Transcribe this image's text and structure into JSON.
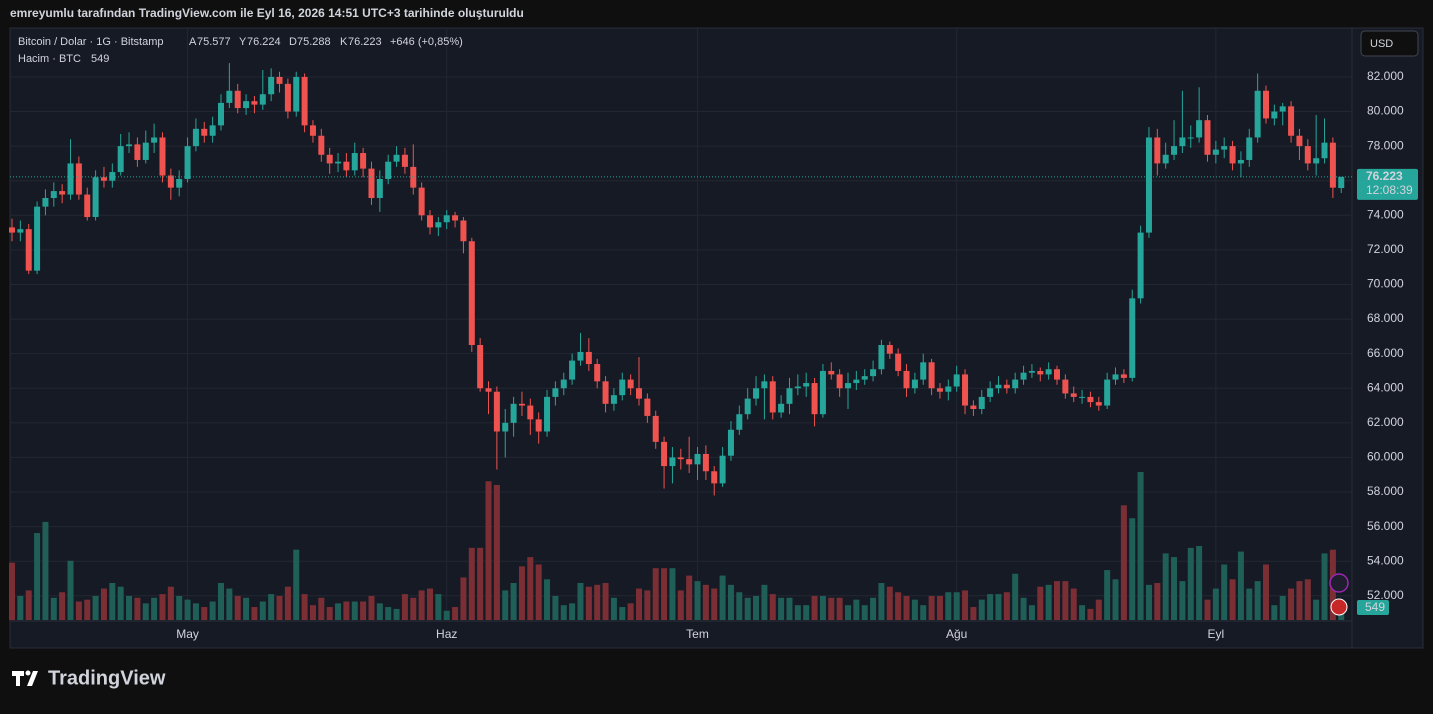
{
  "page": {
    "top_note": "emreyumlu tarafından TradingView.com ile Eyl 16, 2026 14:51 UTC+3 tarihinde oluşturuldu",
    "currency": "USD",
    "brand": "TradingView"
  },
  "header": {
    "symbol": "Bitcoin / Dolar · 1G · Bitstamp",
    "open_key": "A",
    "open": "75.577",
    "high_key": "Y",
    "high": "76.224",
    "low_key": "D",
    "low": "75.288",
    "close_key": "K",
    "close": "76.223",
    "change": "+646 (+0,85%)",
    "volume_name": "Hacim · BTC"
  },
  "chart_data": {
    "type": "candlestick",
    "up_color": "#26a69a",
    "down_color": "#ef5350",
    "volume_up_color": "#1f5f58",
    "volume_down_color": "#7b2f35",
    "grid": true,
    "last_price_label": "76.223",
    "countdown": "12:08:39",
    "ylim": [
      50600,
      84830
    ],
    "vlim": [
      0,
      32000
    ],
    "yticks": [
      {
        "value": 52000,
        "label": "52.000"
      },
      {
        "value": 54000,
        "label": "54.000"
      },
      {
        "value": 56000,
        "label": "56.000"
      },
      {
        "value": 58000,
        "label": "58.000"
      },
      {
        "value": 60000,
        "label": "60.000"
      },
      {
        "value": 62000,
        "label": "62.000"
      },
      {
        "value": 64000,
        "label": "64.000"
      },
      {
        "value": 66000,
        "label": "66.000"
      },
      {
        "value": 68000,
        "label": "68.000"
      },
      {
        "value": 70000,
        "label": "70.000"
      },
      {
        "value": 72000,
        "label": "72.000"
      },
      {
        "value": 74000,
        "label": "74.000"
      },
      {
        "value": 76000,
        "label": "76.000"
      },
      {
        "value": 78000,
        "label": "78.000"
      },
      {
        "value": 80000,
        "label": "80.000"
      },
      {
        "value": 82000,
        "label": "82.000"
      }
    ],
    "categories": [
      null,
      null,
      null,
      null,
      null,
      null,
      null,
      null,
      null,
      null,
      null,
      null,
      null,
      null,
      null,
      null,
      null,
      null,
      null,
      null,
      null,
      "May",
      null,
      null,
      null,
      null,
      null,
      null,
      null,
      null,
      null,
      null,
      null,
      null,
      null,
      null,
      null,
      null,
      null,
      null,
      null,
      null,
      null,
      null,
      null,
      null,
      null,
      null,
      null,
      null,
      null,
      null,
      "Haz",
      null,
      null,
      null,
      null,
      null,
      null,
      null,
      null,
      null,
      null,
      null,
      null,
      null,
      null,
      null,
      null,
      null,
      null,
      null,
      null,
      null,
      null,
      null,
      null,
      null,
      null,
      null,
      null,
      null,
      "Tem",
      null,
      null,
      null,
      null,
      null,
      null,
      null,
      null,
      null,
      null,
      null,
      null,
      null,
      null,
      null,
      null,
      null,
      null,
      null,
      null,
      null,
      null,
      null,
      null,
      null,
      null,
      null,
      null,
      null,
      null,
      "Ağu",
      null,
      null,
      null,
      null,
      null,
      null,
      null,
      null,
      null,
      null,
      null,
      null,
      null,
      null,
      null,
      null,
      null,
      null,
      null,
      null,
      null,
      null,
      null,
      null,
      null,
      null,
      null,
      null,
      null,
      null,
      "Eyl",
      null,
      null,
      null,
      null,
      null,
      null,
      null,
      null,
      null,
      null,
      null,
      null,
      null,
      null,
      null
    ],
    "ohlc": [
      [
        73300,
        73800,
        72500,
        73000
      ],
      [
        73000,
        73700,
        72500,
        73200
      ],
      [
        73200,
        73500,
        70600,
        70800
      ],
      [
        70800,
        74800,
        70600,
        74500
      ],
      [
        74500,
        75500,
        74000,
        75000
      ],
      [
        75000,
        75900,
        74500,
        75400
      ],
      [
        75400,
        75800,
        74700,
        75200
      ],
      [
        75200,
        78400,
        74900,
        77000
      ],
      [
        77000,
        77400,
        74900,
        75200
      ],
      [
        75200,
        75600,
        73700,
        73900
      ],
      [
        73900,
        76600,
        73700,
        76200
      ],
      [
        76200,
        76800,
        75600,
        76000
      ],
      [
        76000,
        77000,
        75600,
        76500
      ],
      [
        76500,
        78700,
        76300,
        78000
      ],
      [
        78000,
        78800,
        77600,
        78100
      ],
      [
        78100,
        78500,
        76800,
        77200
      ],
      [
        77200,
        78900,
        77000,
        78200
      ],
      [
        78200,
        79300,
        77600,
        78500
      ],
      [
        78500,
        78800,
        75900,
        76300
      ],
      [
        76300,
        76700,
        74900,
        75600
      ],
      [
        75600,
        76600,
        75100,
        76100
      ],
      [
        76100,
        78500,
        75900,
        78000
      ],
      [
        78000,
        79600,
        77700,
        79000
      ],
      [
        79000,
        79400,
        78200,
        78600
      ],
      [
        78600,
        79700,
        78200,
        79200
      ],
      [
        79200,
        81000,
        78900,
        80500
      ],
      [
        80500,
        82800,
        80200,
        81200
      ],
      [
        81200,
        81600,
        79900,
        80200
      ],
      [
        80200,
        81000,
        79800,
        80600
      ],
      [
        80600,
        80900,
        79900,
        80400
      ],
      [
        80400,
        82400,
        80100,
        81000
      ],
      [
        81000,
        82500,
        80600,
        82000
      ],
      [
        82000,
        82300,
        81100,
        81600
      ],
      [
        81600,
        81900,
        79600,
        80000
      ],
      [
        80000,
        82300,
        79700,
        82000
      ],
      [
        82000,
        82200,
        78800,
        79200
      ],
      [
        79200,
        79500,
        78200,
        78600
      ],
      [
        78600,
        79000,
        77100,
        77500
      ],
      [
        77500,
        77900,
        76400,
        77000
      ],
      [
        77000,
        77600,
        76500,
        77100
      ],
      [
        77100,
        77600,
        76200,
        76600
      ],
      [
        76600,
        78200,
        76300,
        77600
      ],
      [
        77600,
        77900,
        76200,
        76700
      ],
      [
        76700,
        77100,
        74600,
        75000
      ],
      [
        75000,
        76600,
        74200,
        76100
      ],
      [
        76100,
        77500,
        75800,
        77100
      ],
      [
        77100,
        78000,
        76800,
        77500
      ],
      [
        77500,
        77900,
        76400,
        76800
      ],
      [
        76800,
        78100,
        75200,
        75600
      ],
      [
        75600,
        75900,
        73700,
        74000
      ],
      [
        74000,
        74300,
        72900,
        73300
      ],
      [
        73300,
        73900,
        72800,
        73600
      ],
      [
        73600,
        74300,
        73200,
        74000
      ],
      [
        74000,
        74200,
        73300,
        73700
      ],
      [
        73700,
        73900,
        71800,
        72500
      ],
      [
        72500,
        72700,
        66100,
        66500
      ],
      [
        66500,
        66900,
        63800,
        64000
      ],
      [
        64000,
        64400,
        62500,
        63800
      ],
      [
        63800,
        64100,
        59300,
        61500
      ],
      [
        61500,
        62800,
        60000,
        62000
      ],
      [
        62000,
        63500,
        61200,
        63100
      ],
      [
        63100,
        63800,
        62400,
        63000
      ],
      [
        63000,
        63400,
        61300,
        62200
      ],
      [
        62200,
        62600,
        60800,
        61500
      ],
      [
        61500,
        63900,
        61200,
        63500
      ],
      [
        63500,
        64400,
        63000,
        64000
      ],
      [
        64000,
        64900,
        63600,
        64500
      ],
      [
        64500,
        66000,
        64200,
        65600
      ],
      [
        65600,
        67200,
        65300,
        66100
      ],
      [
        66100,
        66900,
        65000,
        65400
      ],
      [
        65400,
        65700,
        64000,
        64400
      ],
      [
        64400,
        64700,
        62600,
        63100
      ],
      [
        63100,
        64000,
        62700,
        63600
      ],
      [
        63600,
        64900,
        63300,
        64500
      ],
      [
        64500,
        64800,
        63600,
        64000
      ],
      [
        64000,
        65800,
        63000,
        63400
      ],
      [
        63400,
        63700,
        62000,
        62400
      ],
      [
        62400,
        62700,
        60500,
        60900
      ],
      [
        60900,
        61200,
        58200,
        59500
      ],
      [
        59500,
        60600,
        58500,
        60000
      ],
      [
        60000,
        60500,
        59300,
        59900
      ],
      [
        59900,
        61200,
        59100,
        59600
      ],
      [
        59600,
        60600,
        58700,
        60200
      ],
      [
        60200,
        60700,
        58700,
        59200
      ],
      [
        59200,
        59500,
        57800,
        58500
      ],
      [
        58500,
        60600,
        58300,
        60100
      ],
      [
        60100,
        62100,
        59800,
        61600
      ],
      [
        61600,
        63000,
        61300,
        62500
      ],
      [
        62500,
        64000,
        62200,
        63400
      ],
      [
        63400,
        64700,
        63000,
        64000
      ],
      [
        64000,
        64800,
        62200,
        64400
      ],
      [
        64400,
        64700,
        62200,
        62600
      ],
      [
        62600,
        63600,
        62300,
        63100
      ],
      [
        63100,
        64600,
        62500,
        64000
      ],
      [
        64000,
        64800,
        63600,
        64100
      ],
      [
        64100,
        64900,
        63500,
        64300
      ],
      [
        64300,
        64600,
        61800,
        62500
      ],
      [
        62500,
        65400,
        62300,
        65000
      ],
      [
        65000,
        65500,
        64500,
        64800
      ],
      [
        64800,
        65100,
        63500,
        64000
      ],
      [
        64000,
        64900,
        62800,
        64300
      ],
      [
        64300,
        65000,
        63900,
        64500
      ],
      [
        64500,
        65100,
        64200,
        64700
      ],
      [
        64700,
        65600,
        64400,
        65100
      ],
      [
        65100,
        66800,
        64800,
        66500
      ],
      [
        66500,
        66700,
        65700,
        66000
      ],
      [
        66000,
        66300,
        64700,
        65000
      ],
      [
        65000,
        65400,
        63500,
        64000
      ],
      [
        64000,
        64900,
        63700,
        64500
      ],
      [
        64500,
        66000,
        64200,
        65500
      ],
      [
        65500,
        65700,
        63600,
        64000
      ],
      [
        64000,
        64300,
        63400,
        63800
      ],
      [
        63800,
        64500,
        63300,
        64100
      ],
      [
        64100,
        65300,
        63800,
        64800
      ],
      [
        64800,
        65100,
        62500,
        63000
      ],
      [
        63000,
        63300,
        62400,
        62800
      ],
      [
        62800,
        63900,
        62500,
        63500
      ],
      [
        63500,
        64400,
        63200,
        64000
      ],
      [
        64000,
        64700,
        63700,
        64200
      ],
      [
        64200,
        64500,
        63700,
        64000
      ],
      [
        64000,
        64900,
        63700,
        64500
      ],
      [
        64500,
        65300,
        64200,
        64900
      ],
      [
        64900,
        65400,
        64600,
        65000
      ],
      [
        65000,
        65200,
        64400,
        64800
      ],
      [
        64800,
        65500,
        64500,
        65100
      ],
      [
        65100,
        65300,
        64200,
        64500
      ],
      [
        64500,
        64800,
        63400,
        63700
      ],
      [
        63700,
        64100,
        63200,
        63500
      ],
      [
        63500,
        63900,
        63100,
        63500
      ],
      [
        63500,
        63800,
        62900,
        63200
      ],
      [
        63200,
        63500,
        62700,
        63000
      ],
      [
        63000,
        64900,
        62800,
        64500
      ],
      [
        64500,
        65200,
        64200,
        64800
      ],
      [
        64800,
        65100,
        64300,
        64600
      ],
      [
        64600,
        69700,
        64400,
        69200
      ],
      [
        69200,
        73400,
        68900,
        73000
      ],
      [
        73000,
        79100,
        72700,
        78500
      ],
      [
        78500,
        79000,
        76300,
        77000
      ],
      [
        77000,
        78200,
        76700,
        77500
      ],
      [
        77500,
        79500,
        77200,
        78000
      ],
      [
        78000,
        81200,
        77600,
        78500
      ],
      [
        78500,
        79200,
        77900,
        78500
      ],
      [
        78500,
        81400,
        78200,
        79500
      ],
      [
        79500,
        79800,
        77100,
        77500
      ],
      [
        77500,
        78300,
        77000,
        77800
      ],
      [
        77800,
        78500,
        77300,
        78000
      ],
      [
        78000,
        78300,
        76600,
        77000
      ],
      [
        77000,
        77700,
        76200,
        77200
      ],
      [
        77200,
        79000,
        76800,
        78500
      ],
      [
        78500,
        82200,
        78200,
        81200
      ],
      [
        81200,
        81500,
        79300,
        79600
      ],
      [
        79600,
        80400,
        79200,
        80000
      ],
      [
        80000,
        80500,
        79200,
        80300
      ],
      [
        80300,
        80600,
        78200,
        78600
      ],
      [
        78600,
        79000,
        77200,
        78000
      ],
      [
        78000,
        78400,
        76600,
        77000
      ],
      [
        77000,
        79800,
        76300,
        77300
      ],
      [
        77300,
        79600,
        77000,
        78200
      ],
      [
        78200,
        78500,
        75000,
        75600
      ],
      [
        75577,
        76224,
        75288,
        76223
      ]
    ],
    "volume": [
      3100,
      1300,
      1600,
      4700,
      5300,
      1200,
      1500,
      3200,
      1000,
      1100,
      1300,
      1700,
      2000,
      1800,
      1300,
      1200,
      900,
      1200,
      1400,
      1800,
      1300,
      1100,
      900,
      700,
      1000,
      2000,
      1700,
      1300,
      1200,
      700,
      1000,
      1400,
      1300,
      1800,
      3800,
      1400,
      800,
      1200,
      700,
      900,
      1000,
      1000,
      1000,
      1300,
      900,
      700,
      600,
      1400,
      1200,
      1600,
      1700,
      1400,
      500,
      700,
      2300,
      3900,
      3900,
      7500,
      7300,
      1600,
      2000,
      2900,
      3400,
      3000,
      2200,
      1300,
      800,
      900,
      2000,
      1800,
      1900,
      2000,
      1200,
      700,
      900,
      1700,
      1600,
      2800,
      2800,
      2800,
      1600,
      2400,
      2100,
      1900,
      1700,
      2400,
      1900,
      1500,
      1200,
      1300,
      1900,
      1400,
      1200,
      1200,
      800,
      800,
      1300,
      1300,
      1200,
      1200,
      800,
      1100,
      800,
      1200,
      2000,
      1800,
      1500,
      1300,
      1100,
      800,
      1300,
      1300,
      1500,
      1500,
      1600,
      700,
      1100,
      1400,
      1400,
      1500,
      2500,
      1200,
      800,
      1800,
      1900,
      2100,
      2100,
      1700,
      800,
      600,
      1100,
      2700,
      2200,
      6200,
      5500,
      8000,
      1900,
      2000,
      3600,
      3400,
      2100,
      3900,
      4000,
      1100,
      1700,
      3000,
      2200,
      3700,
      1700,
      2100,
      3000,
      800,
      1300,
      1700,
      2100,
      2200,
      1100,
      3600,
      3800,
      549
    ]
  }
}
